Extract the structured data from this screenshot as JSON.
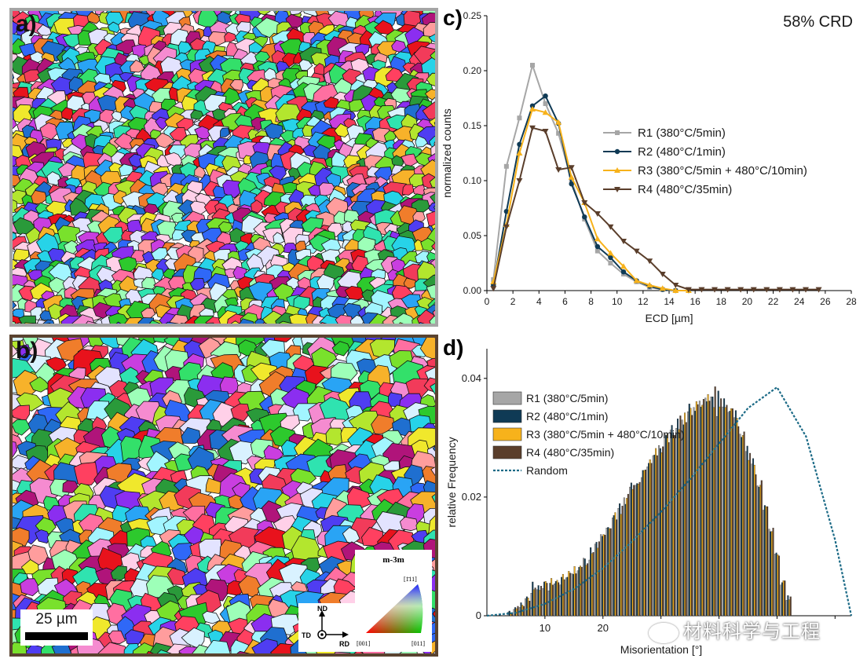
{
  "panels": {
    "a": "a)",
    "b": "b)",
    "c": "c)",
    "d": "d)"
  },
  "map_b": {
    "scale_label": "25 µm",
    "axis_nd": "ND",
    "axis_td": "TD",
    "axis_rd": "RD",
    "ipf_title": "m-3m",
    "ipf_111": "[1̄11]",
    "ipf_001": "[001]",
    "ipf_011": "[011]"
  },
  "colors": {
    "R1": "#a6a6a6",
    "R2": "#0f3a55",
    "R3": "#f7b21b",
    "R4": "#5a3e2b",
    "random": "#1b6a86",
    "frame_a": "#a5a5a5",
    "frame_b": "#5a4330"
  },
  "watermark": "材料科学与工程",
  "chart_data": [
    {
      "type": "line",
      "annotation": "58% CRD",
      "xlabel": "ECD [µm]",
      "ylabel": "normalized counts",
      "xlim": [
        0,
        28
      ],
      "ylim": [
        0,
        0.25
      ],
      "xticks": [
        0,
        2,
        4,
        6,
        8,
        10,
        12,
        14,
        16,
        18,
        20,
        22,
        24,
        26,
        28
      ],
      "yticks": [
        "0.00",
        "0.05",
        "0.10",
        "0.15",
        "0.20",
        "0.25"
      ],
      "legend_position": "center-right",
      "series": [
        {
          "name": "R1 (380°C/5min)",
          "marker": "square",
          "x": [
            0.5,
            1.5,
            2.5,
            3.5,
            4.5,
            5.5,
            6.5,
            7.5,
            8.5,
            9.5,
            10.5,
            11.5,
            12.5,
            13.5,
            14.5,
            15.5
          ],
          "y": [
            0.01,
            0.113,
            0.157,
            0.205,
            0.17,
            0.143,
            0.1,
            0.065,
            0.036,
            0.025,
            0.015,
            0.008,
            0.003,
            0.001,
            0.0,
            0.0
          ]
        },
        {
          "name": "R2 (480°C/1min)",
          "marker": "circle",
          "x": [
            0.5,
            1.5,
            2.5,
            3.5,
            4.5,
            5.5,
            6.5,
            7.5,
            8.5,
            9.5,
            10.5,
            11.5,
            12.5,
            13.5,
            14.5,
            15.5
          ],
          "y": [
            0.005,
            0.072,
            0.133,
            0.168,
            0.177,
            0.152,
            0.097,
            0.067,
            0.04,
            0.03,
            0.017,
            0.009,
            0.004,
            0.001,
            0.0,
            0.0
          ]
        },
        {
          "name": "R3 (380°C/5min + 480°C/10min)",
          "marker": "triangle-up",
          "x": [
            0.5,
            1.5,
            2.5,
            3.5,
            4.5,
            5.5,
            6.5,
            7.5,
            8.5,
            9.5,
            10.5,
            11.5,
            12.5,
            13.5,
            14.5,
            15.5
          ],
          "y": [
            0.008,
            0.06,
            0.125,
            0.165,
            0.162,
            0.153,
            0.103,
            0.08,
            0.047,
            0.034,
            0.022,
            0.009,
            0.005,
            0.002,
            0.0,
            0.0
          ]
        },
        {
          "name": "R4 (480°C/35min)",
          "marker": "triangle-down",
          "x": [
            0.5,
            1.5,
            2.5,
            3.5,
            4.5,
            5.5,
            6.5,
            7.5,
            8.5,
            9.5,
            10.5,
            11.5,
            12.5,
            13.5,
            14.5,
            15.5,
            16.5,
            17.5,
            18.5,
            19.5,
            20.5,
            21.5,
            22.5,
            23.5,
            24.5,
            25.5
          ],
          "y": [
            0.002,
            0.058,
            0.1,
            0.148,
            0.145,
            0.11,
            0.112,
            0.08,
            0.07,
            0.058,
            0.045,
            0.036,
            0.027,
            0.015,
            0.005,
            0.001,
            0.001,
            0.001,
            0.001,
            0.001,
            0.001,
            0.001,
            0.001,
            0.001,
            0.001,
            0.001
          ]
        }
      ]
    },
    {
      "type": "bar",
      "xlabel": "Misorientation [°]",
      "ylabel": "relative Frequency",
      "xlim": [
        0,
        62.8
      ],
      "ylim": [
        0,
        0.045
      ],
      "xticks": [
        10,
        20,
        30,
        40,
        50,
        60
      ],
      "xtick_labels": [
        "10",
        "20",
        "",
        "",
        "",
        ""
      ],
      "yticks": [
        "0",
        "0.02",
        "0.04"
      ],
      "legend_position": "upper-left",
      "bin_start": 2,
      "bin_width": 1,
      "series": [
        {
          "name": "R1 (380°C/5min)",
          "values": [
            0.0,
            0.0,
            0.0006,
            0.0011,
            0.0014,
            0.0029,
            0.0038,
            0.0044,
            0.0046,
            0.0042,
            0.0054,
            0.0052,
            0.0064,
            0.0071,
            0.0076,
            0.0097,
            0.0094,
            0.0121,
            0.0137,
            0.0148,
            0.0165,
            0.0181,
            0.0199,
            0.0217,
            0.022,
            0.0233,
            0.0251,
            0.027,
            0.0287,
            0.0306,
            0.0313,
            0.0316,
            0.033,
            0.0344,
            0.0351,
            0.0362,
            0.0367,
            0.0369,
            0.0336,
            0.0352,
            0.0343,
            0.0334,
            0.0306,
            0.0277,
            0.0256,
            0.0219,
            0.0178,
            0.0146,
            0.0104,
            0.0052,
            0.0026
          ]
        },
        {
          "name": "R2 (480°C/1min)",
          "values": [
            0.0,
            0.0,
            0.0008,
            0.0014,
            0.0022,
            0.0032,
            0.0057,
            0.0051,
            0.0057,
            0.0055,
            0.0058,
            0.0065,
            0.0065,
            0.007,
            0.0082,
            0.0096,
            0.0115,
            0.0124,
            0.0134,
            0.0149,
            0.0169,
            0.0189,
            0.0188,
            0.0224,
            0.0223,
            0.0245,
            0.0257,
            0.0271,
            0.0282,
            0.0304,
            0.0321,
            0.0332,
            0.0322,
            0.0357,
            0.0345,
            0.0352,
            0.0361,
            0.0369,
            0.0379,
            0.0366,
            0.0345,
            0.0346,
            0.0301,
            0.0286,
            0.0265,
            0.0217,
            0.0186,
            0.0142,
            0.0106,
            0.0056,
            0.0034
          ]
        },
        {
          "name": "R3 (380°C/5min + 480°C/10min)",
          "values": [
            0.0,
            0.0,
            0.0005,
            0.0012,
            0.0018,
            0.003,
            0.0044,
            0.0043,
            0.0058,
            0.0063,
            0.006,
            0.007,
            0.0075,
            0.0083,
            0.0084,
            0.0085,
            0.0105,
            0.0114,
            0.0137,
            0.0147,
            0.0174,
            0.0171,
            0.0198,
            0.0213,
            0.0222,
            0.0245,
            0.0263,
            0.0282,
            0.0275,
            0.0306,
            0.0304,
            0.0314,
            0.0342,
            0.035,
            0.0361,
            0.0355,
            0.0373,
            0.0351,
            0.0352,
            0.0351,
            0.0349,
            0.0333,
            0.0304,
            0.0262,
            0.0254,
            0.022,
            0.0184,
            0.0142,
            0.0103,
            0.0059,
            0.0027
          ]
        },
        {
          "name": "R4 (480°C/35min)",
          "values": [
            0.0,
            0.0,
            0.0005,
            0.0016,
            0.0016,
            0.0025,
            0.0047,
            0.005,
            0.0055,
            0.0052,
            0.0056,
            0.0061,
            0.0072,
            0.0071,
            0.0082,
            0.0088,
            0.0107,
            0.0125,
            0.0136,
            0.0147,
            0.0162,
            0.0185,
            0.0205,
            0.022,
            0.0225,
            0.0246,
            0.0257,
            0.027,
            0.0285,
            0.0292,
            0.0304,
            0.0337,
            0.0326,
            0.0338,
            0.0356,
            0.0365,
            0.0362,
            0.0386,
            0.0366,
            0.0355,
            0.0349,
            0.0319,
            0.031,
            0.0274,
            0.0238,
            0.0228,
            0.0184,
            0.0148,
            0.0101,
            0.0059,
            0.0032
          ]
        },
        {
          "name": "Random",
          "style": "dotted-line",
          "x": [
            0,
            5,
            10,
            15,
            20,
            25,
            30,
            35,
            40,
            45,
            50,
            55,
            60,
            62.8
          ],
          "y": [
            0.0,
            0.0005,
            0.002,
            0.0045,
            0.008,
            0.0125,
            0.0175,
            0.023,
            0.029,
            0.035,
            0.0385,
            0.0302,
            0.0128,
            0.0
          ]
        }
      ]
    }
  ]
}
